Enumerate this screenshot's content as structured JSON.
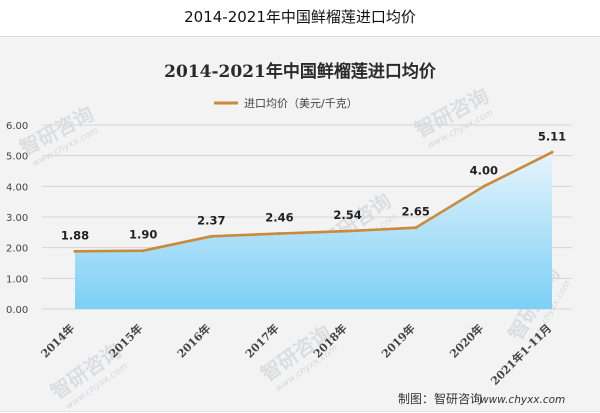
{
  "page": {
    "title": "2014-2021年中国鲜榴莲进口均价",
    "credit": "制图：智研咨询",
    "credit_url": "www.chyxx.com",
    "watermark_text": "智研咨询",
    "watermark_url": "www.chyxx.com"
  },
  "colors": {
    "line": "#c98a3a",
    "fill_top": "#e6f4fd",
    "fill_bottom": "#7ccff5",
    "grid": "#d5d5d5",
    "axis_text": "#444444",
    "title_text": "#2a2a2a"
  },
  "chart_data": {
    "type": "area",
    "title": "2014-2021年中国鲜榴莲进口均价",
    "categories": [
      "2014年",
      "2015年",
      "2016年",
      "2017年",
      "2018年",
      "2019年",
      "2020年",
      "2021年1-11月"
    ],
    "series": [
      {
        "name": "进口均价（美元/千克）",
        "values": [
          1.88,
          1.9,
          2.37,
          2.46,
          2.54,
          2.65,
          4.0,
          5.11
        ],
        "labels": [
          "1.88",
          "1.90",
          "2.37",
          "2.46",
          "2.54",
          "2.65",
          "4.00",
          "5.11"
        ]
      }
    ],
    "ylim": [
      0,
      6
    ],
    "yticks": [
      0,
      1,
      2,
      3,
      4,
      5,
      6
    ],
    "ytick_labels": [
      "0.00",
      "1.00",
      "2.00",
      "3.00",
      "4.00",
      "5.00",
      "6.00"
    ],
    "xlabel": "",
    "ylabel": "",
    "grid": true,
    "legend_position": "top-center"
  }
}
